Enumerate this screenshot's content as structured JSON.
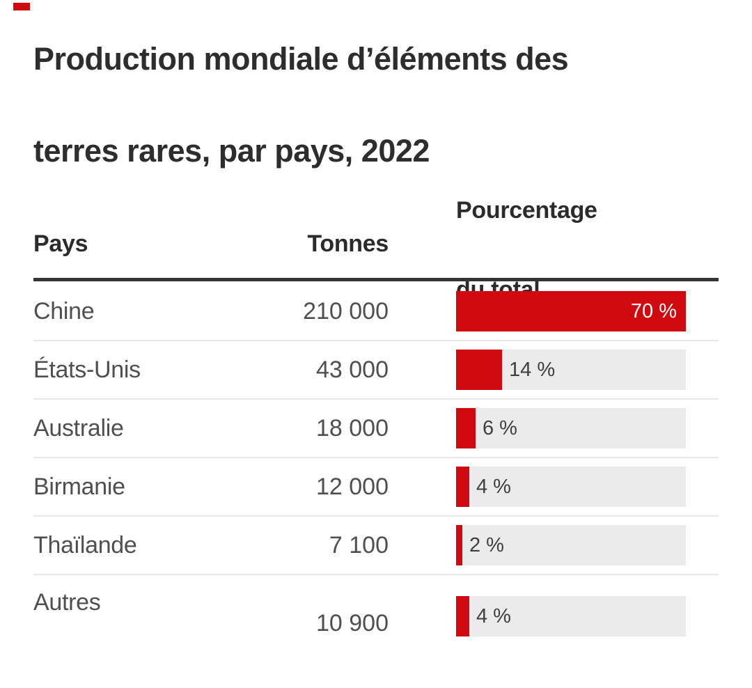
{
  "brand": {
    "tick_color": "#d0090e"
  },
  "title": {
    "line1": "Production mondiale d’éléments des",
    "line2": "terres rares, par pays, 2022"
  },
  "table": {
    "headers": {
      "country": "Pays",
      "tonnes": "Tonnes",
      "percent_line1": "Pourcentage",
      "percent_line2": "du total"
    },
    "rows": [
      {
        "country": "Chine",
        "tonnes": "210 000",
        "percent": 70,
        "percent_label": "70 %"
      },
      {
        "country": "États-Unis",
        "tonnes": "43 000",
        "percent": 14,
        "percent_label": "14 %"
      },
      {
        "country": "Australie",
        "tonnes": "18 000",
        "percent": 6,
        "percent_label": "6 %"
      },
      {
        "country": "Birmanie",
        "tonnes": "12 000",
        "percent": 4,
        "percent_label": "4 %"
      },
      {
        "country": "Thaïlande",
        "tonnes": "7 100",
        "percent": 2,
        "percent_label": "2 %"
      },
      {
        "country": "Autres",
        "tonnes": "10 900",
        "percent": 4,
        "percent_label": "4 %"
      }
    ]
  },
  "colors": {
    "bar_red": "#d0090e",
    "track_grey": "#ebebeb",
    "header_rule": "#333333",
    "title_text": "#2d2d2d",
    "row_text": "#4f4f4f"
  },
  "chart_data": {
    "type": "bar",
    "orientation": "horizontal",
    "title": "Production mondiale d’éléments des terres rares, par pays, 2022",
    "categories": [
      "Chine",
      "États-Unis",
      "Australie",
      "Birmanie",
      "Thaïlande",
      "Autres"
    ],
    "series": [
      {
        "name": "Tonnes",
        "values": [
          210000,
          43000,
          18000,
          12000,
          7100,
          10900
        ]
      },
      {
        "name": "Pourcentage du total",
        "values": [
          70,
          14,
          6,
          4,
          2,
          4
        ]
      }
    ],
    "percent_axis_max": 70,
    "legend": "none",
    "grid": "off"
  }
}
